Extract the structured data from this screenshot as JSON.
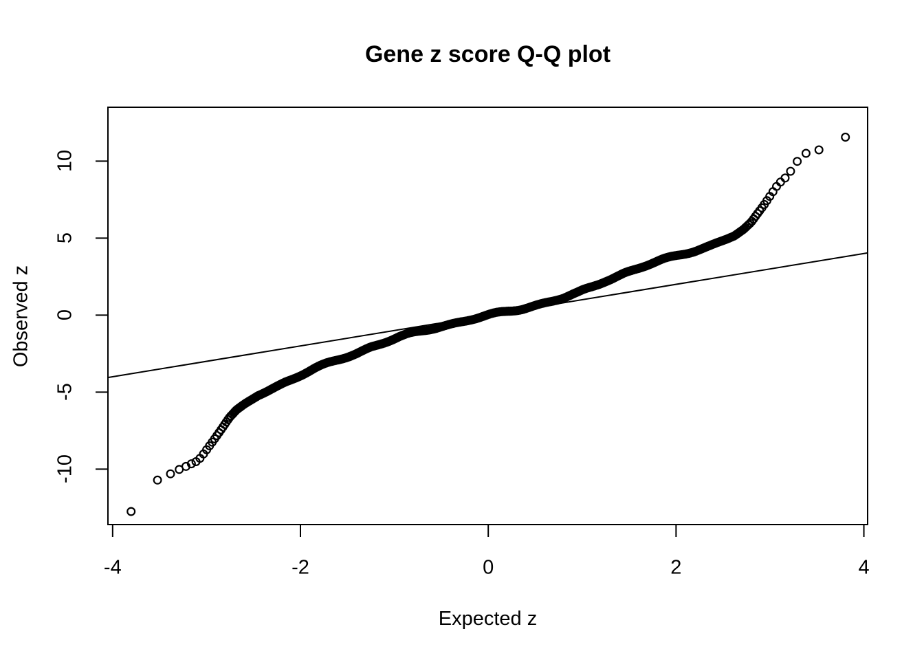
{
  "chart_data": {
    "type": "scatter",
    "title": "Gene z score Q-Q plot",
    "xlabel": "Expected z",
    "ylabel": "Observed z",
    "xlim": [
      -4.05,
      4.04
    ],
    "ylim": [
      -13.6,
      13.5
    ],
    "x_ticks": [
      -4,
      -2,
      0,
      2,
      4
    ],
    "x_tick_labels": [
      "-4",
      "-2",
      "0",
      "2",
      "4"
    ],
    "y_ticks": [
      -10,
      -5,
      0,
      5,
      10
    ],
    "y_tick_labels": [
      "-10",
      "-5",
      "0",
      "5",
      "10"
    ],
    "grid": false,
    "legend": null,
    "marker": "open-circle",
    "point_color": "#000000",
    "line_color": "#000000",
    "background": "#ffffff",
    "reference_line": {
      "intercept": 0,
      "slope": 1
    },
    "n_points_estimated": 7000,
    "curve_points": [
      [
        -3.82,
        -12.8
      ],
      [
        -3.76,
        -12.63
      ],
      [
        -3.58,
        -10.94
      ],
      [
        -3.48,
        -10.55
      ],
      [
        -3.4,
        -10.35
      ],
      [
        -3.33,
        -10.15
      ],
      [
        -3.27,
        -9.95
      ],
      [
        -3.21,
        -9.8
      ],
      [
        -3.15,
        -9.62
      ],
      [
        -3.09,
        -9.45
      ],
      [
        -3.03,
        -9.0
      ],
      [
        -2.97,
        -8.5
      ],
      [
        -2.9,
        -7.9
      ],
      [
        -2.83,
        -7.3
      ],
      [
        -2.76,
        -6.7
      ],
      [
        -2.68,
        -6.2
      ],
      [
        -2.58,
        -5.75
      ],
      [
        -2.45,
        -5.2
      ],
      [
        -2.3,
        -4.75
      ],
      [
        -2.15,
        -4.3
      ],
      [
        -2.0,
        -3.9
      ],
      [
        -1.85,
        -3.5
      ],
      [
        -1.7,
        -3.15
      ],
      [
        -1.55,
        -2.8
      ],
      [
        -1.4,
        -2.45
      ],
      [
        -1.25,
        -2.05
      ],
      [
        -1.1,
        -1.75
      ],
      [
        -0.95,
        -1.45
      ],
      [
        -0.8,
        -1.2
      ],
      [
        -0.65,
        -0.95
      ],
      [
        -0.5,
        -0.7
      ],
      [
        -0.35,
        -0.5
      ],
      [
        -0.2,
        -0.3
      ],
      [
        0.0,
        -0.04
      ],
      [
        0.2,
        0.22
      ],
      [
        0.35,
        0.42
      ],
      [
        0.5,
        0.65
      ],
      [
        0.65,
        0.88
      ],
      [
        0.8,
        1.1
      ],
      [
        0.95,
        1.4
      ],
      [
        1.1,
        1.8
      ],
      [
        1.25,
        2.25
      ],
      [
        1.45,
        2.75
      ],
      [
        1.65,
        3.15
      ],
      [
        1.85,
        3.55
      ],
      [
        2.05,
        3.92
      ],
      [
        2.2,
        4.2
      ],
      [
        2.35,
        4.5
      ],
      [
        2.5,
        4.85
      ],
      [
        2.62,
        5.15
      ],
      [
        2.72,
        5.55
      ],
      [
        2.8,
        6.0
      ],
      [
        2.87,
        6.6
      ],
      [
        2.93,
        7.1
      ],
      [
        2.98,
        7.55
      ],
      [
        3.03,
        8.0
      ],
      [
        3.08,
        8.45
      ],
      [
        3.13,
        8.75
      ],
      [
        3.18,
        9.0
      ],
      [
        3.22,
        9.35
      ],
      [
        3.27,
        9.95
      ],
      [
        3.33,
        10.05
      ],
      [
        3.38,
        10.5
      ],
      [
        3.46,
        10.68
      ],
      [
        3.58,
        10.78
      ],
      [
        3.75,
        11.43
      ],
      [
        3.82,
        11.6
      ]
    ]
  }
}
